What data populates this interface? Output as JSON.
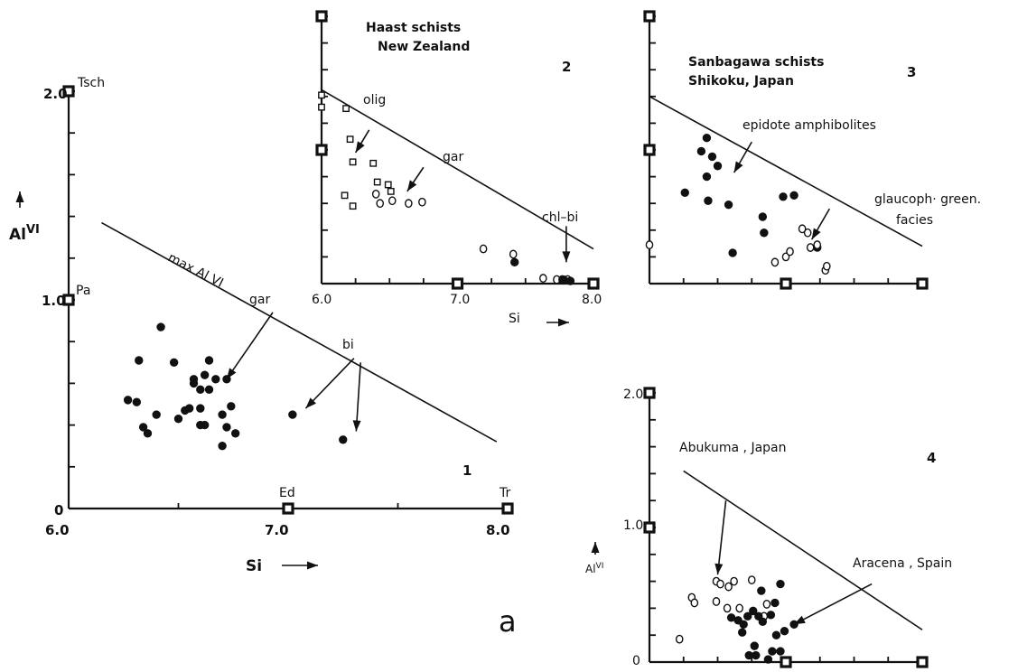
{
  "figure_label": "a",
  "chart_data": [
    {
      "type": "scatter",
      "panel_number": "1",
      "xlabel": "Si",
      "ylabel": "AlVI",
      "xlim": [
        6.0,
        8.0
      ],
      "ylim": [
        0,
        2.0
      ],
      "x_ticks": [
        "6.0",
        "7.0",
        "8.0"
      ],
      "y_ticks": [
        "0",
        "1.0",
        "2.0"
      ],
      "endmembers": [
        {
          "label": "Tsch",
          "x": 6.0,
          "y": 2.0
        },
        {
          "label": "Pa",
          "x": 6.0,
          "y": 1.0
        },
        {
          "label": "Ed",
          "x": 7.0,
          "y": 0
        },
        {
          "label": "Tr",
          "x": 8.0,
          "y": 0
        }
      ],
      "max_line": {
        "label": "max Al VI",
        "x": [
          6.15,
          7.95
        ],
        "y": [
          1.37,
          0.32
        ]
      },
      "annotations": [
        {
          "text": "gar",
          "from": [
            6.93,
            0.94
          ],
          "to": [
            6.72,
            0.62
          ]
        },
        {
          "text": "bi",
          "from": [
            7.3,
            0.72
          ],
          "to": [
            7.08,
            0.48
          ]
        },
        {
          "text": "bi",
          "from": [
            7.33,
            0.7
          ],
          "to": [
            7.31,
            0.37
          ]
        }
      ],
      "series": [
        {
          "marker": "filled-circle",
          "x": [
            6.32,
            6.42,
            6.48,
            6.64,
            6.27,
            6.31,
            6.62,
            6.72,
            6.57,
            6.6,
            6.57,
            6.67,
            6.64,
            6.55,
            6.6,
            6.53,
            6.4,
            6.5,
            6.74,
            6.62,
            6.34,
            6.7,
            6.36,
            6.6,
            6.72,
            6.76,
            6.7,
            7.02,
            7.25
          ],
          "y": [
            0.71,
            0.87,
            0.7,
            0.71,
            0.52,
            0.51,
            0.64,
            0.62,
            0.6,
            0.57,
            0.62,
            0.62,
            0.57,
            0.48,
            0.48,
            0.47,
            0.45,
            0.43,
            0.49,
            0.4,
            0.39,
            0.45,
            0.36,
            0.4,
            0.39,
            0.36,
            0.3,
            0.45,
            0.33
          ]
        }
      ]
    },
    {
      "type": "scatter",
      "panel_number": "2",
      "title": "Haast schists New Zealand",
      "title_lines": [
        "Haast schists",
        "New Zealand"
      ],
      "xlabel": "Si",
      "xlim": [
        6.0,
        8.0
      ],
      "x_ticks": [
        "6.0",
        "7.0",
        "8.0"
      ],
      "max_line": {
        "x": [
          6.0,
          8.0
        ],
        "y": [
          1.45,
          0.26
        ]
      },
      "annotations": [
        {
          "text": "olig",
          "from": [
            6.35,
            1.15
          ],
          "to": [
            6.25,
            0.98
          ]
        },
        {
          "text": "gar",
          "from": [
            6.75,
            0.87
          ],
          "to": [
            6.63,
            0.69
          ]
        },
        {
          "text": "chl–bi",
          "from": [
            7.8,
            0.43
          ],
          "to": [
            7.8,
            0.16
          ]
        }
      ],
      "series": [
        {
          "marker": "open-square",
          "x": [
            6.0,
            6.0,
            6.18,
            6.21,
            6.23,
            6.38,
            6.41,
            6.49,
            6.51,
            6.17,
            6.23
          ],
          "y": [
            1.41,
            1.32,
            1.31,
            1.08,
            0.91,
            0.9,
            0.76,
            0.74,
            0.69,
            0.66,
            0.58
          ],
          "values_note": ""
        },
        {
          "marker": "open-circle",
          "x": [
            6.4,
            6.52,
            6.64,
            6.74,
            6.43,
            7.19,
            7.41,
            7.63,
            7.73,
            7.77,
            7.81
          ],
          "y": [
            0.67,
            0.62,
            0.6,
            0.61,
            0.6,
            0.26,
            0.22,
            0.04,
            0.03,
            0.03,
            0.03
          ]
        },
        {
          "marker": "filled-circle",
          "x": [
            7.42,
            7.78,
            7.83
          ],
          "y": [
            0.16,
            0.03,
            0.02
          ]
        }
      ]
    },
    {
      "type": "scatter",
      "panel_number": "3",
      "title": "Sanbagawa schists Shikoku, Japan",
      "title_lines": [
        "Sanbagawa schists",
        "Shikoku, Japan"
      ],
      "xlim": [
        6.0,
        8.0
      ],
      "max_line": {
        "x": [
          6.0,
          8.0
        ],
        "y": [
          1.4,
          0.28
        ]
      },
      "annotations": [
        {
          "text": "epidote amphibolites",
          "from": [
            6.75,
            1.06
          ],
          "to": [
            6.62,
            0.83
          ]
        },
        {
          "text": "glaucoph. green. facies",
          "from": [
            7.32,
            0.56
          ],
          "to": [
            7.19,
            0.33
          ]
        }
      ],
      "series": [
        {
          "marker": "filled-circle",
          "x": [
            6.42,
            6.38,
            6.46,
            6.5,
            6.42,
            6.26,
            6.98,
            6.43,
            6.58,
            6.83,
            6.61,
            6.84,
            7.06,
            7.23
          ],
          "y": [
            1.09,
            0.99,
            0.95,
            0.88,
            0.8,
            0.68,
            0.65,
            0.62,
            0.59,
            0.5,
            0.23,
            0.38,
            0.66,
            0.27
          ]
        },
        {
          "marker": "open-circle",
          "x": [
            6.0,
            6.92,
            7.0,
            7.03,
            7.18,
            7.23,
            7.16,
            7.12,
            7.29,
            7.3
          ],
          "y": [
            0.29,
            0.16,
            0.2,
            0.24,
            0.27,
            0.29,
            0.38,
            0.41,
            0.1,
            0.13
          ]
        }
      ]
    },
    {
      "type": "scatter",
      "panel_number": "4",
      "ylabel": "AlVI",
      "xlim": [
        6.0,
        8.0
      ],
      "ylim": [
        0,
        2.0
      ],
      "y_ticks": [
        "0",
        "1.0",
        "2.0"
      ],
      "max_line": {
        "x": [
          6.25,
          8.0
        ],
        "y": [
          1.42,
          0.24
        ]
      },
      "annotations": [
        {
          "text": "Abukuma , Japan",
          "from": [
            6.56,
            1.2
          ],
          "to": [
            6.5,
            0.65
          ]
        },
        {
          "text": "Aracena , Spain",
          "from": [
            7.63,
            0.58
          ],
          "to": [
            7.06,
            0.28
          ]
        }
      ],
      "series": [
        {
          "marker": "open-circle",
          "x": [
            6.49,
            6.52,
            6.58,
            6.62,
            6.75,
            6.49,
            6.66,
            6.84,
            6.86,
            6.22,
            6.31,
            6.33,
            6.57
          ],
          "y": [
            0.6,
            0.58,
            0.56,
            0.6,
            0.61,
            0.45,
            0.4,
            0.34,
            0.43,
            0.17,
            0.48,
            0.44,
            0.4
          ]
        },
        {
          "marker": "filled-circle",
          "x": [
            6.6,
            6.65,
            6.72,
            6.8,
            6.89,
            6.92,
            6.96,
            6.82,
            6.76,
            6.69,
            6.83,
            6.93,
            6.99,
            7.06,
            6.77,
            6.78,
            6.9,
            6.68,
            6.73,
            6.87,
            6.96
          ],
          "y": [
            0.33,
            0.31,
            0.34,
            0.34,
            0.35,
            0.44,
            0.58,
            0.53,
            0.38,
            0.28,
            0.3,
            0.2,
            0.23,
            0.28,
            0.12,
            0.05,
            0.08,
            0.22,
            0.05,
            0.02,
            0.08
          ]
        }
      ]
    }
  ]
}
